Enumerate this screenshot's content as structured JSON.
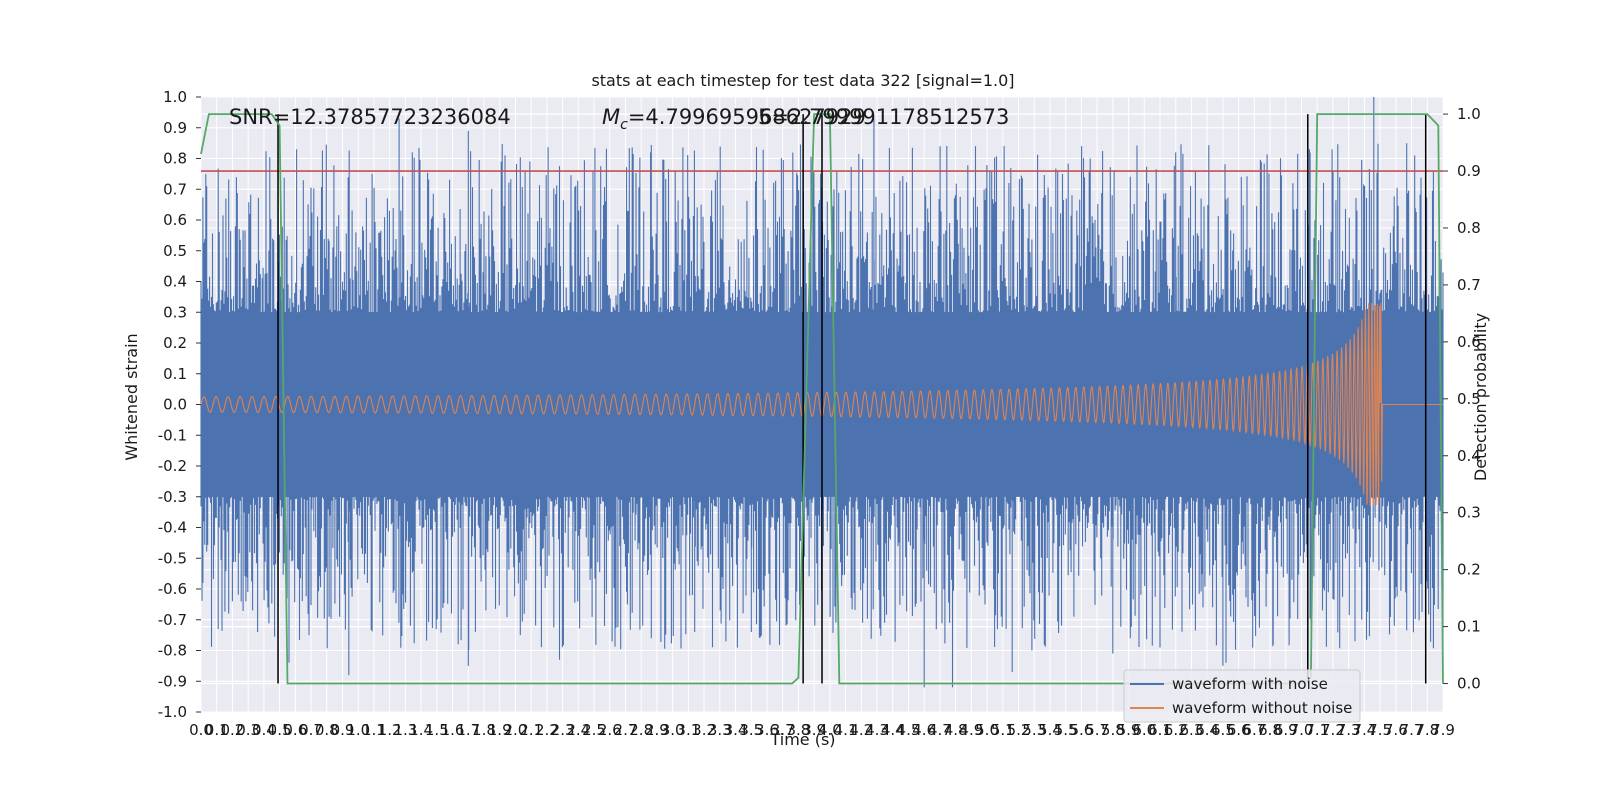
{
  "chart_data": {
    "type": "line",
    "title": "stats at each timestep for test data 322 [signal=1.0]",
    "xlabel": "Time (s)",
    "ylabel": "Whitened strain",
    "ylabel_right": "Detection probability",
    "xlim": [
      0.0,
      7.9
    ],
    "ylim": [
      -1.0,
      1.0
    ],
    "ylim_right": [
      -0.05,
      1.03
    ],
    "x_ticks": [
      0.0,
      0.1,
      0.2,
      0.3,
      0.4,
      0.5,
      0.6,
      0.7,
      0.8,
      0.9,
      1.0,
      1.1,
      1.2,
      1.3,
      1.4,
      1.5,
      1.6,
      1.7,
      1.8,
      1.9,
      2.0,
      2.1,
      2.2,
      2.3,
      2.4,
      2.5,
      2.6,
      2.7,
      2.8,
      2.9,
      3.0,
      3.1,
      3.2,
      3.3,
      3.4,
      3.5,
      3.6,
      3.7,
      3.8,
      3.9,
      4.0,
      4.1,
      4.2,
      4.3,
      4.4,
      4.5,
      4.6,
      4.7,
      4.8,
      4.9,
      5.0,
      5.1,
      5.2,
      5.3,
      5.4,
      5.5,
      5.6,
      5.7,
      5.8,
      5.9,
      6.0,
      6.1,
      6.2,
      6.3,
      6.4,
      6.5,
      6.6,
      6.7,
      6.8,
      6.9,
      7.0,
      7.1,
      7.2,
      7.3,
      7.4,
      7.5,
      7.6,
      7.7,
      7.8,
      7.9
    ],
    "y_ticks": [
      -1.0,
      -0.9,
      -0.8,
      -0.7,
      -0.6,
      -0.5,
      -0.4,
      -0.3,
      -0.2,
      -0.1,
      0.0,
      0.1,
      0.2,
      0.3,
      0.4,
      0.5,
      0.6,
      0.7,
      0.8,
      0.9,
      1.0
    ],
    "y_ticks_right": [
      0.0,
      0.1,
      0.2,
      0.3,
      0.4,
      0.5,
      0.6,
      0.7,
      0.8,
      0.9,
      1.0
    ],
    "grid": true,
    "legend_position": "lower-right",
    "annotations": {
      "snr": "SNR=12.37857723236084",
      "mc_symbol": "M",
      "mc_subscript": "c",
      "mc_value": "=4.799695968627929",
      "overlap_text": "5=2.799991178512573"
    },
    "threshold_line": {
      "y_right": 0.9,
      "color": "#c44e52"
    },
    "series": [
      {
        "name": "waveform with noise",
        "color": "#4c72b0",
        "axis": "left",
        "envelope_typical": 0.3,
        "peak_values": [
          [
            1.26,
            0.93
          ],
          [
            1.7,
            0.89
          ],
          [
            2.86,
            0.82
          ],
          [
            4.28,
            0.93
          ],
          [
            6.2,
            0.82
          ],
          [
            7.05,
            0.83
          ],
          [
            7.46,
            1.0
          ],
          [
            7.72,
            0.81
          ],
          [
            0.2,
            -0.64
          ],
          [
            0.36,
            -0.74
          ],
          [
            0.56,
            -0.84
          ],
          [
            0.94,
            -0.88
          ],
          [
            1.7,
            -0.85
          ],
          [
            2.28,
            -0.83
          ],
          [
            3.14,
            -0.74
          ],
          [
            3.5,
            -0.74
          ],
          [
            4.6,
            -0.92
          ],
          [
            4.78,
            -0.92
          ],
          [
            5.16,
            -0.87
          ],
          [
            5.8,
            -0.81
          ],
          [
            6.52,
            -0.84
          ],
          [
            6.5,
            -0.85
          ],
          [
            6.82,
            -0.78
          ],
          [
            7.34,
            -0.77
          ],
          [
            7.59,
            -0.72
          ]
        ]
      },
      {
        "name": "waveform without noise",
        "color": "#dd8452",
        "axis": "left",
        "merger_time": 7.5,
        "peak_amplitude": 0.33,
        "initial_amplitude": 0.025
      },
      {
        "name": "detection probability",
        "color": "#55a868",
        "axis": "right",
        "x": [
          0.0,
          0.05,
          0.1,
          0.45,
          0.5,
          0.55,
          3.76,
          3.8,
          3.9,
          3.93,
          4.0,
          4.06,
          7.0,
          7.06,
          7.1,
          7.8,
          7.87,
          7.9
        ],
        "y": [
          0.93,
          1.0,
          1.0,
          1.0,
          0.98,
          0.0,
          0.0,
          0.01,
          1.0,
          1.0,
          1.0,
          0.0,
          0.0,
          0.01,
          1.0,
          1.0,
          0.98,
          0.0
        ]
      }
    ],
    "vertical_markers": [
      0.49,
      3.83,
      3.95,
      7.04,
      7.79
    ]
  }
}
